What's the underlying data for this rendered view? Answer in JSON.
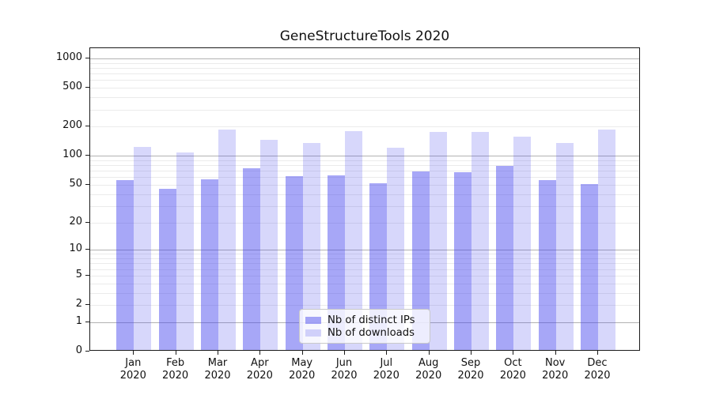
{
  "chart_data": {
    "type": "bar",
    "title": "GeneStructureTools 2020",
    "categories": [
      "Jan",
      "Feb",
      "Mar",
      "Apr",
      "May",
      "Jun",
      "Jul",
      "Aug",
      "Sep",
      "Oct",
      "Nov",
      "Dec"
    ],
    "x_year_label": "2020",
    "series": [
      {
        "name": "Nb of distinct IPs",
        "color": "rgba(68,68,238,0.47)",
        "values": [
          54,
          44,
          55,
          72,
          59,
          60,
          50,
          66,
          65,
          76,
          54,
          49
        ]
      },
      {
        "name": "Nb of downloads",
        "color": "rgba(68,68,238,0.21)",
        "values": [
          119,
          105,
          179,
          141,
          130,
          174,
          116,
          170,
          171,
          153,
          131,
          181
        ]
      }
    ],
    "base_color": "#4444ee",
    "y_scale": "log1p",
    "y_ticks": [
      0,
      1,
      2,
      5,
      10,
      20,
      50,
      100,
      200,
      500,
      1000
    ],
    "ylim": [
      0,
      1275
    ],
    "xlabel": "",
    "ylabel": "",
    "grid": "on",
    "legend_position": "lower-center",
    "grid_major_color": "#b2b2b2",
    "grid_minor_color": "#ebebeb"
  }
}
